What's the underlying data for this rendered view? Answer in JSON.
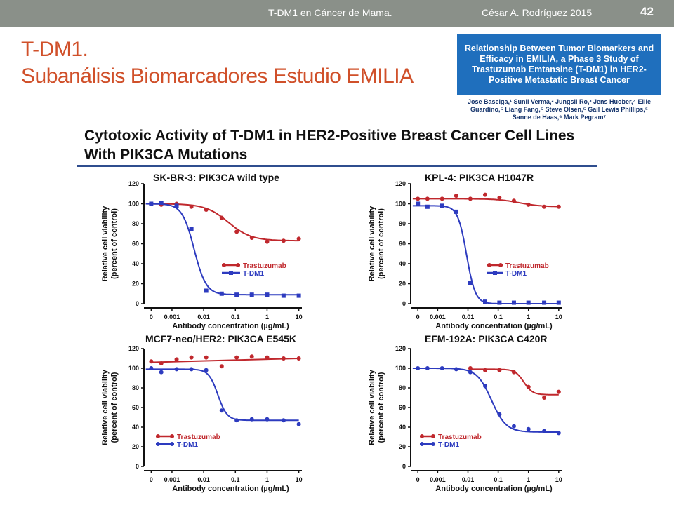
{
  "header": {
    "course": "T-DM1 en Cáncer de Mama.",
    "author": "César A. Rodríguez 2015",
    "slide_number": "42"
  },
  "slide": {
    "title_line1": "T-DM1.",
    "title_line2": "Subanálisis Biomarcadores Estudio EMILIA"
  },
  "paper": {
    "title": "Relationship Between Tumor Biomarkers and Efficacy in EMILIA, a Phase 3 Study of Trastuzumab Emtansine (T-DM1) in HER2-Positive Metastatic Breast Cancer",
    "authors": "Jose Baselga,¹ Sunil Verma,² Jungsil Ro,³ Jens Huober,⁴ Ellie Guardino,⁵ Liang Fang,⁵ Steve Olsen,⁵ Gail Lewis Phillips,⁵ Sanne de Haas,⁶ Mark Pegram⁷"
  },
  "figure": {
    "title": "Cytotoxic Activity of T-DM1 in HER2-Positive Breast Cancer Cell Lines With PIK3CA Mutations"
  },
  "colors": {
    "trastuzumab": "#c0282d",
    "tdm1": "#2d3bbf",
    "accent": "#d0502a"
  },
  "chart_data": [
    {
      "type": "line",
      "title": "SK-BR-3: PIK3CA wild type",
      "xlabel": "Antibody concentration (µg/mL)",
      "ylabel_line1": "Relative cell viability",
      "ylabel_line2": "(percent of control)",
      "xscale": "log",
      "x_ticks": [
        "0",
        "0.001",
        "0.01",
        "0.1",
        "1",
        "10"
      ],
      "y_ticks": [
        "0",
        "20",
        "40",
        "60",
        "80",
        "100",
        "120"
      ],
      "ylim": [
        0,
        120
      ],
      "legend": "middle-right",
      "series": [
        {
          "name": "Trastuzumab",
          "x": [
            0,
            0.00046,
            0.0014,
            0.0041,
            0.012,
            0.037,
            0.11,
            0.33,
            1,
            3.3,
            10
          ],
          "y": [
            100,
            99,
            100,
            97,
            94,
            86,
            72,
            66,
            62,
            63,
            65
          ],
          "fit": {
            "bottom": 63,
            "top": 100,
            "ec50": 0.06,
            "hill": 1.2
          }
        },
        {
          "name": "T-DM1",
          "x": [
            0,
            0.00046,
            0.0014,
            0.0041,
            0.012,
            0.037,
            0.11,
            0.33,
            1,
            3.3,
            10
          ],
          "y": [
            100,
            101,
            98,
            75,
            13,
            10,
            9,
            9,
            9,
            8,
            8
          ],
          "fit": {
            "bottom": 9,
            "top": 100,
            "ec50": 0.005,
            "hill": 2.3
          }
        }
      ]
    },
    {
      "type": "line",
      "title": "KPL-4: PIK3CA H1047R",
      "xlabel": "Antibody concentration (µg/mL)",
      "ylabel_line1": "Relative cell viability",
      "ylabel_line2": "(percent of control)",
      "xscale": "log",
      "x_ticks": [
        "0",
        "0.001",
        "0.01",
        "0.1",
        "1",
        "10"
      ],
      "y_ticks": [
        "0",
        "20",
        "40",
        "60",
        "80",
        "100",
        "120"
      ],
      "ylim": [
        0,
        120
      ],
      "legend": "middle-right",
      "series": [
        {
          "name": "Trastuzumab",
          "x": [
            0,
            0.00046,
            0.0014,
            0.0041,
            0.012,
            0.037,
            0.11,
            0.33,
            1,
            3.3,
            10
          ],
          "y": [
            105,
            105,
            105,
            108,
            105,
            109,
            106,
            103,
            99,
            97,
            97
          ],
          "fit": {
            "bottom": 97,
            "top": 105,
            "ec50": 0.5,
            "hill": 1.2
          }
        },
        {
          "name": "T-DM1",
          "x": [
            0,
            0.00046,
            0.0014,
            0.0041,
            0.012,
            0.037,
            0.11,
            0.33,
            1,
            3.3,
            10
          ],
          "y": [
            100,
            97,
            98,
            92,
            21,
            2,
            1,
            1,
            1,
            1,
            1
          ],
          "fit": {
            "bottom": 0,
            "top": 98,
            "ec50": 0.009,
            "hill": 3.0
          }
        }
      ]
    },
    {
      "type": "line",
      "title": "MCF7-neo/HER2: PIK3CA E545K",
      "xlabel": "Antibody concentration (µg/mL)",
      "ylabel_line1": "Relative cell viability",
      "ylabel_line2": "(percent of control)",
      "xscale": "log",
      "x_ticks": [
        "0",
        "0.001",
        "0.01",
        "0.1",
        "1",
        "10"
      ],
      "y_ticks": [
        "0",
        "20",
        "40",
        "60",
        "80",
        "100",
        "120"
      ],
      "ylim": [
        0,
        120
      ],
      "legend": "bottom-left",
      "series": [
        {
          "name": "Trastuzumab",
          "x": [
            0,
            0.00046,
            0.0014,
            0.0041,
            0.012,
            0.037,
            0.11,
            0.33,
            1,
            3.3,
            10
          ],
          "y": [
            107,
            105,
            109,
            111,
            111,
            102,
            111,
            112,
            111,
            110,
            110
          ],
          "fit": "linear",
          "fit_y": [
            106,
            110
          ]
        },
        {
          "name": "T-DM1",
          "x": [
            0,
            0.00046,
            0.0014,
            0.0041,
            0.012,
            0.037,
            0.11,
            0.33,
            1,
            3.3,
            10
          ],
          "y": [
            100,
            96,
            99,
            99,
            98,
            57,
            47,
            48,
            48,
            47,
            43
          ],
          "fit": {
            "bottom": 47,
            "top": 99,
            "ec50": 0.028,
            "hill": 3.0
          }
        }
      ]
    },
    {
      "type": "line",
      "title": "EFM-192A: PIK3CA C420R",
      "xlabel": "Antibody concentration (µg/mL)",
      "ylabel_line1": "Relative cell viability",
      "ylabel_line2": "(percent of control)",
      "xscale": "log",
      "x_ticks": [
        "0",
        "0.001",
        "0.01",
        "0.1",
        "1",
        "10"
      ],
      "y_ticks": [
        "0",
        "20",
        "40",
        "60",
        "80",
        "100",
        "120"
      ],
      "ylim": [
        0,
        120
      ],
      "legend": "bottom-left",
      "series": [
        {
          "name": "Trastuzumab",
          "x": [
            0.012,
            0.037,
            0.11,
            0.33,
            1,
            3.3,
            10
          ],
          "y": [
            100,
            98,
            98,
            96,
            81,
            70,
            76
          ],
          "fit": {
            "bottom": 73,
            "top": 99,
            "ec50": 0.7,
            "hill": 3.0
          }
        },
        {
          "name": "T-DM1",
          "x": [
            0,
            0.00046,
            0.0014,
            0.0041,
            0.012,
            0.037,
            0.11,
            0.33,
            1,
            3.3,
            10
          ],
          "y": [
            100,
            100,
            100,
            99,
            96,
            82,
            53,
            41,
            38,
            36,
            34
          ],
          "fit": {
            "bottom": 35,
            "top": 100,
            "ec50": 0.06,
            "hill": 1.8
          }
        }
      ]
    }
  ]
}
